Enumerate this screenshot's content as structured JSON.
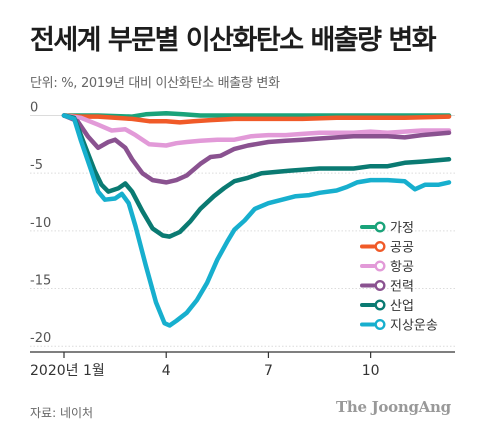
{
  "title": "전세계 부문별 이산화탄소 배출량 변화",
  "subtitle": "단위: %, 2019년 대비 이산화탄소 배출량 변화",
  "source": "자료: 네이처",
  "logo": "The JoongAng",
  "chart_data": {
    "type": "line",
    "x_unit": "month of 2020",
    "xlim": [
      1,
      12.3
    ],
    "ylim": [
      -20.5,
      0.3
    ],
    "x_ticks": [
      {
        "value": 1,
        "label": "2020년 1월"
      },
      {
        "value": 4,
        "label": "4"
      },
      {
        "value": 7,
        "label": "7"
      },
      {
        "value": 10,
        "label": "10"
      }
    ],
    "y_ticks": [
      {
        "value": 0,
        "label": "0"
      },
      {
        "value": -5,
        "label": "-5"
      },
      {
        "value": -10,
        "label": "-10"
      },
      {
        "value": -15,
        "label": "-15"
      },
      {
        "value": -20,
        "label": "-20"
      }
    ],
    "grid": "horizontal",
    "legend": "right",
    "series": [
      {
        "name": "가정",
        "color": "#1aa37a",
        "points": [
          [
            1,
            0
          ],
          [
            2,
            0
          ],
          [
            3,
            -0.1
          ],
          [
            3.4,
            0.1
          ],
          [
            4,
            0.2
          ],
          [
            4.5,
            0.1
          ],
          [
            5,
            0
          ],
          [
            6,
            0
          ],
          [
            7,
            0
          ],
          [
            8,
            0
          ],
          [
            9,
            0
          ],
          [
            10,
            0
          ],
          [
            11,
            0
          ],
          [
            12.3,
            0
          ]
        ]
      },
      {
        "name": "공공",
        "color": "#f05a28",
        "points": [
          [
            1,
            0
          ],
          [
            1.5,
            -0.1
          ],
          [
            2,
            -0.1
          ],
          [
            2.5,
            -0.2
          ],
          [
            3,
            -0.3
          ],
          [
            3.5,
            -0.5
          ],
          [
            4,
            -0.5
          ],
          [
            4.4,
            -0.6
          ],
          [
            4.8,
            -0.5
          ],
          [
            5.3,
            -0.4
          ],
          [
            6,
            -0.3
          ],
          [
            7,
            -0.3
          ],
          [
            8,
            -0.3
          ],
          [
            9,
            -0.2
          ],
          [
            10,
            -0.2
          ],
          [
            11,
            -0.2
          ],
          [
            12.3,
            -0.1
          ]
        ]
      },
      {
        "name": "항공",
        "color": "#e29ad8",
        "points": [
          [
            1,
            0
          ],
          [
            1.5,
            -0.2
          ],
          [
            2,
            -0.8
          ],
          [
            2.4,
            -1.3
          ],
          [
            2.8,
            -1.2
          ],
          [
            3.1,
            -1.7
          ],
          [
            3.5,
            -2.5
          ],
          [
            4,
            -2.6
          ],
          [
            4.3,
            -2.4
          ],
          [
            4.6,
            -2.3
          ],
          [
            5,
            -2.2
          ],
          [
            5.5,
            -2.1
          ],
          [
            6,
            -2.1
          ],
          [
            6.5,
            -1.8
          ],
          [
            7,
            -1.7
          ],
          [
            7.5,
            -1.7
          ],
          [
            8,
            -1.6
          ],
          [
            8.5,
            -1.5
          ],
          [
            9,
            -1.5
          ],
          [
            9.5,
            -1.5
          ],
          [
            10,
            -1.4
          ],
          [
            10.5,
            -1.5
          ],
          [
            11,
            -1.4
          ],
          [
            11.5,
            -1.3
          ],
          [
            12.3,
            -1.3
          ]
        ]
      },
      {
        "name": "전력",
        "color": "#8a5290",
        "points": [
          [
            1,
            0
          ],
          [
            1.4,
            -0.5
          ],
          [
            1.7,
            -1.8
          ],
          [
            2,
            -2.8
          ],
          [
            2.3,
            -2.3
          ],
          [
            2.5,
            -2.1
          ],
          [
            2.8,
            -2.8
          ],
          [
            3,
            -3.8
          ],
          [
            3.3,
            -5.0
          ],
          [
            3.6,
            -5.6
          ],
          [
            4,
            -5.8
          ],
          [
            4.3,
            -5.6
          ],
          [
            4.6,
            -5.2
          ],
          [
            5,
            -4.2
          ],
          [
            5.3,
            -3.6
          ],
          [
            5.6,
            -3.5
          ],
          [
            6,
            -2.9
          ],
          [
            6.4,
            -2.6
          ],
          [
            7,
            -2.3
          ],
          [
            7.5,
            -2.2
          ],
          [
            8,
            -2.1
          ],
          [
            8.5,
            -2.0
          ],
          [
            9,
            -1.9
          ],
          [
            9.5,
            -1.8
          ],
          [
            10,
            -1.8
          ],
          [
            10.5,
            -1.8
          ],
          [
            11,
            -1.9
          ],
          [
            11.5,
            -1.7
          ],
          [
            12.3,
            -1.5
          ]
        ]
      },
      {
        "name": "산업",
        "color": "#0a7a72",
        "points": [
          [
            1,
            0
          ],
          [
            1.3,
            -0.2
          ],
          [
            1.6,
            -2.5
          ],
          [
            1.9,
            -4.8
          ],
          [
            2.1,
            -6.0
          ],
          [
            2.3,
            -6.6
          ],
          [
            2.6,
            -6.3
          ],
          [
            2.8,
            -5.9
          ],
          [
            3,
            -6.6
          ],
          [
            3.3,
            -8.3
          ],
          [
            3.6,
            -9.8
          ],
          [
            3.9,
            -10.4
          ],
          [
            4.1,
            -10.5
          ],
          [
            4.4,
            -10.1
          ],
          [
            4.7,
            -9.2
          ],
          [
            5,
            -8.1
          ],
          [
            5.4,
            -7.0
          ],
          [
            5.7,
            -6.3
          ],
          [
            6,
            -5.7
          ],
          [
            6.4,
            -5.4
          ],
          [
            6.8,
            -5.0
          ],
          [
            7.2,
            -4.9
          ],
          [
            7.6,
            -4.8
          ],
          [
            8,
            -4.7
          ],
          [
            8.5,
            -4.6
          ],
          [
            9,
            -4.6
          ],
          [
            9.5,
            -4.6
          ],
          [
            10,
            -4.4
          ],
          [
            10.5,
            -4.4
          ],
          [
            11,
            -4.1
          ],
          [
            11.5,
            -4.0
          ],
          [
            12.3,
            -3.8
          ]
        ]
      },
      {
        "name": "지상운송",
        "color": "#17afce",
        "points": [
          [
            1,
            0
          ],
          [
            1.3,
            -0.3
          ],
          [
            1.5,
            -2.2
          ],
          [
            1.8,
            -4.8
          ],
          [
            2,
            -6.6
          ],
          [
            2.2,
            -7.3
          ],
          [
            2.5,
            -7.2
          ],
          [
            2.7,
            -6.8
          ],
          [
            2.9,
            -7.6
          ],
          [
            3.1,
            -9.6
          ],
          [
            3.4,
            -13.0
          ],
          [
            3.7,
            -16.2
          ],
          [
            3.95,
            -18.0
          ],
          [
            4.1,
            -18.2
          ],
          [
            4.3,
            -17.8
          ],
          [
            4.6,
            -17.1
          ],
          [
            4.9,
            -16.0
          ],
          [
            5.2,
            -14.5
          ],
          [
            5.5,
            -12.5
          ],
          [
            5.8,
            -10.9
          ],
          [
            6,
            -9.9
          ],
          [
            6.3,
            -9.1
          ],
          [
            6.6,
            -8.1
          ],
          [
            7,
            -7.6
          ],
          [
            7.4,
            -7.3
          ],
          [
            7.8,
            -7.0
          ],
          [
            8.2,
            -6.9
          ],
          [
            8.5,
            -6.7
          ],
          [
            9,
            -6.5
          ],
          [
            9.3,
            -6.2
          ],
          [
            9.6,
            -5.8
          ],
          [
            10,
            -5.6
          ],
          [
            10.5,
            -5.6
          ],
          [
            11,
            -5.7
          ],
          [
            11.3,
            -6.4
          ],
          [
            11.6,
            -6.0
          ],
          [
            12,
            -6.0
          ],
          [
            12.3,
            -5.8
          ]
        ]
      }
    ]
  }
}
